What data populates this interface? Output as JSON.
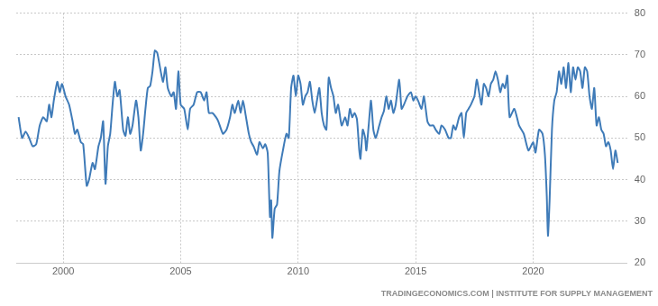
{
  "chart_data": {
    "type": "line",
    "annotation": "TRADINGECONOMICS.COM | INSTITUTE FOR SUPPLY MANAGEMENT",
    "color": "#3f7bb8",
    "grid": true,
    "xlim": [
      1998,
      2024
    ],
    "xticks": [
      2000,
      2005,
      2010,
      2015,
      2020
    ],
    "ylim": [
      20,
      80
    ],
    "yticks": [
      20,
      30,
      40,
      50,
      60,
      70,
      80
    ],
    "x": [
      1998.1,
      1998.25,
      1998.4,
      1998.55,
      1998.7,
      1998.85,
      1999.0,
      1999.15,
      1999.3,
      1999.4,
      1999.5,
      1999.6,
      1999.75,
      1999.85,
      1999.95,
      2000.1,
      2000.25,
      2000.4,
      2000.5,
      2000.6,
      2000.75,
      2000.85,
      2001.0,
      2001.1,
      2001.25,
      2001.35,
      2001.5,
      2001.6,
      2001.7,
      2001.8,
      2001.9,
      2002.0,
      2002.1,
      2002.2,
      2002.3,
      2002.4,
      2002.55,
      2002.65,
      2002.75,
      2002.85,
      2002.95,
      2003.1,
      2003.2,
      2003.3,
      2003.4,
      2003.5,
      2003.6,
      2003.7,
      2003.8,
      2003.9,
      2004.0,
      2004.15,
      2004.25,
      2004.35,
      2004.45,
      2004.6,
      2004.7,
      2004.8,
      2004.9,
      2005.0,
      2005.15,
      2005.3,
      2005.4,
      2005.55,
      2005.7,
      2005.85,
      2006.0,
      2006.1,
      2006.2,
      2006.35,
      2006.5,
      2006.6,
      2006.8,
      2006.95,
      2007.1,
      2007.2,
      2007.3,
      2007.45,
      2007.55,
      2007.65,
      2007.75,
      2007.9,
      2008.0,
      2008.1,
      2008.25,
      2008.35,
      2008.5,
      2008.6,
      2008.7,
      2008.75,
      2008.8,
      2008.85,
      2008.9,
      2009.0,
      2009.1,
      2009.2,
      2009.35,
      2009.5,
      2009.6,
      2009.7,
      2009.8,
      2009.9,
      2010.0,
      2010.1,
      2010.2,
      2010.3,
      2010.4,
      2010.5,
      2010.6,
      2010.7,
      2010.8,
      2010.9,
      2011.0,
      2011.1,
      2011.2,
      2011.3,
      2011.4,
      2011.5,
      2011.6,
      2011.7,
      2011.85,
      2012.0,
      2012.1,
      2012.2,
      2012.3,
      2012.4,
      2012.5,
      2012.6,
      2012.65,
      2012.75,
      2012.85,
      2012.9,
      2013.0,
      2013.1,
      2013.2,
      2013.3,
      2013.45,
      2013.55,
      2013.65,
      2013.75,
      2013.85,
      2013.95,
      2014.05,
      2014.15,
      2014.3,
      2014.4,
      2014.5,
      2014.65,
      2014.8,
      2014.9,
      2015.0,
      2015.1,
      2015.25,
      2015.35,
      2015.5,
      2015.6,
      2015.75,
      2015.85,
      2016.0,
      2016.1,
      2016.25,
      2016.4,
      2016.5,
      2016.6,
      2016.7,
      2016.85,
      2016.95,
      2017.05,
      2017.15,
      2017.25,
      2017.35,
      2017.5,
      2017.6,
      2017.7,
      2017.8,
      2017.9,
      2018.0,
      2018.1,
      2018.2,
      2018.3,
      2018.4,
      2018.5,
      2018.6,
      2018.7,
      2018.8,
      2018.9,
      2019.0,
      2019.2,
      2019.4,
      2019.6,
      2019.8,
      2020.0,
      2020.1,
      2020.25,
      2020.4,
      2020.5,
      2020.58,
      2020.63,
      2020.7,
      2020.8,
      2020.9,
      2021.0,
      2021.1,
      2021.2,
      2021.3,
      2021.4,
      2021.5,
      2021.6,
      2021.7,
      2021.8,
      2021.9,
      2022.0,
      2022.1,
      2022.2,
      2022.3,
      2022.4,
      2022.5,
      2022.6,
      2022.7,
      2022.8,
      2022.9,
      2023.0,
      2023.1,
      2023.2,
      2023.3,
      2023.4,
      2023.5,
      2023.6
    ],
    "values": [
      55,
      50,
      51.5,
      50,
      48,
      48.5,
      53,
      55,
      54,
      58,
      55,
      59,
      63.5,
      61,
      63,
      60,
      58,
      54,
      51,
      52,
      49,
      48.5,
      38.5,
      40,
      44,
      42.5,
      48,
      50,
      54,
      39,
      48,
      51,
      58,
      63.5,
      60,
      61.5,
      52,
      50.5,
      55,
      51,
      53,
      59,
      55,
      47,
      51,
      57,
      62,
      62.5,
      66,
      71,
      70.5,
      66,
      63.5,
      67,
      62,
      60,
      61,
      57,
      66,
      58,
      57,
      52,
      57,
      58,
      61,
      61,
      59,
      61,
      56,
      56,
      55,
      54,
      51,
      52,
      55,
      58,
      56,
      59,
      56,
      59,
      56,
      51,
      49,
      48,
      46,
      49,
      47.5,
      48.5,
      46.5,
      39,
      31,
      35,
      26,
      33,
      34,
      42,
      47,
      51,
      50,
      62,
      65,
      60,
      65,
      63,
      58,
      60,
      61,
      63.5,
      59,
      56,
      59,
      62,
      56,
      53,
      52,
      64.5,
      62,
      60,
      56,
      58,
      53,
      55,
      53,
      57,
      55,
      56,
      54.5,
      47,
      45,
      52,
      50,
      47,
      53,
      59,
      52,
      50,
      53,
      55,
      56.5,
      60,
      57,
      59,
      56,
      58,
      64,
      57,
      58,
      60,
      61,
      59,
      60,
      59,
      57,
      60,
      54,
      53,
      53,
      52,
      51,
      53,
      52,
      50,
      50,
      53,
      52,
      55,
      56,
      50,
      56,
      57,
      58,
      60,
      64,
      61,
      58,
      63,
      62,
      60,
      63,
      64,
      66,
      64,
      61,
      63,
      62,
      65,
      55,
      57,
      53,
      51,
      47,
      49,
      46.5,
      52,
      51,
      46,
      36,
      26.5,
      35,
      52,
      59,
      61,
      66,
      63,
      67,
      62,
      68,
      61,
      67,
      64,
      67,
      66,
      62,
      67,
      66,
      60,
      57,
      62,
      53,
      55,
      52,
      51,
      48,
      49,
      47,
      42.5,
      47,
      44
    ]
  }
}
